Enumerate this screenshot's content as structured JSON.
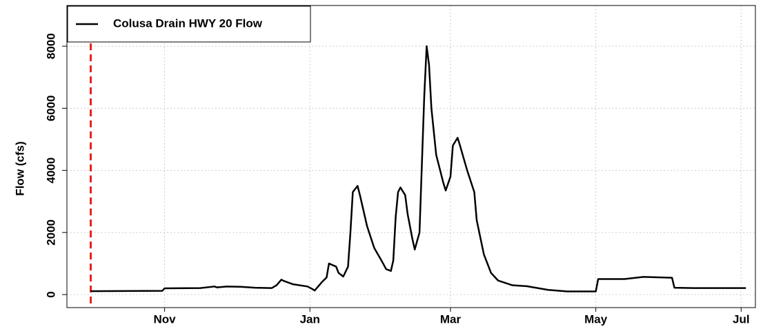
{
  "chart_data": {
    "type": "line",
    "y_label": "Flow (cfs)",
    "x": [
      0,
      30,
      31,
      46,
      52,
      53,
      57,
      63,
      69,
      76,
      78,
      80,
      81,
      85,
      91,
      93,
      94,
      97,
      99,
      100,
      103,
      104,
      106,
      108,
      109,
      110,
      112,
      113,
      116,
      119,
      122,
      124,
      126,
      127,
      128,
      129,
      130,
      132,
      133,
      135,
      136,
      138,
      139,
      140,
      141,
      142,
      143,
      145,
      148,
      149,
      151,
      152,
      154,
      155,
      158,
      161,
      162,
      165,
      168,
      171,
      177,
      183,
      192,
      200,
      212,
      213,
      224,
      232,
      244,
      245,
      253,
      275
    ],
    "series": [
      {
        "name": "Colusa Drain HWY 20 Flow",
        "color": "#000000",
        "values": [
          110,
          120,
          200,
          210,
          260,
          230,
          260,
          250,
          220,
          210,
          300,
          480,
          440,
          330,
          260,
          180,
          130,
          400,
          550,
          1000,
          900,
          700,
          580,
          900,
          2000,
          3300,
          3500,
          3200,
          2200,
          1500,
          1100,
          820,
          760,
          1100,
          2500,
          3300,
          3450,
          3200,
          2600,
          1800,
          1450,
          2000,
          4200,
          6400,
          8000,
          7400,
          6000,
          4500,
          3600,
          3350,
          3800,
          4800,
          5050,
          4800,
          4000,
          3300,
          2400,
          1300,
          700,
          450,
          300,
          270,
          150,
          100,
          100,
          500,
          500,
          570,
          540,
          220,
          210,
          210
        ]
      }
    ],
    "vline": {
      "x": 0,
      "color": "#e8221c"
    },
    "xlim": [
      -10,
      279
    ],
    "xticks": [
      {
        "value": 31,
        "label": "Nov"
      },
      {
        "value": 92,
        "label": "Jan"
      },
      {
        "value": 151,
        "label": "Mar"
      },
      {
        "value": 212,
        "label": "May"
      },
      {
        "value": 273,
        "label": "Jul"
      }
    ],
    "ylim": [
      -420,
      9310
    ],
    "yticks": [
      0,
      2000,
      4000,
      6000,
      8000
    ],
    "grid": true,
    "legend": "top-left"
  }
}
